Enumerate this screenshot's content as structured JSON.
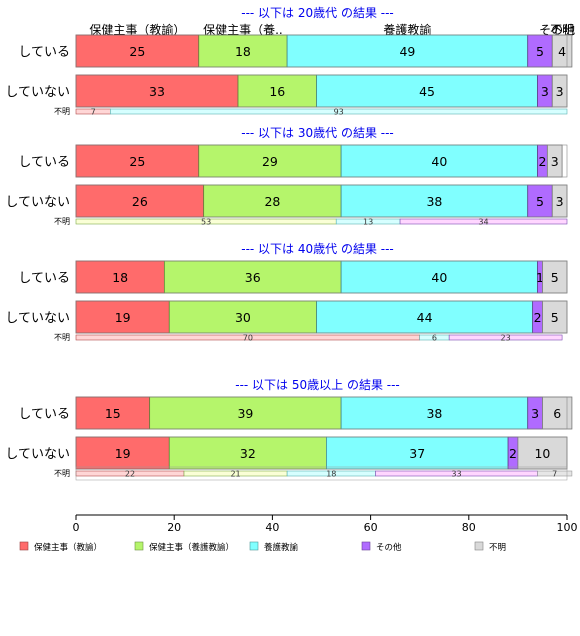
{
  "chart_data": {
    "type": "bar",
    "orientation": "horizontal",
    "stacked": "percent",
    "categories_header": [
      "保健主事（教諭）",
      "保健主事（養..",
      "養護教諭",
      "その他",
      "不明"
    ],
    "legend": {
      "placement": "bottom",
      "items": [
        {
          "label": "保健主事（教諭）",
          "color": "#FF6B6B"
        },
        {
          "label": "保健主事（養護教諭）",
          "color": "#B5F56B"
        },
        {
          "label": "養護教諭",
          "color": "#80FFFF"
        },
        {
          "label": "その他",
          "color": "#B06BFF"
        },
        {
          "label": "不明",
          "color": "#D9D9D9"
        }
      ]
    },
    "series_colors": [
      "#FF6B6B",
      "#B5F56B",
      "#80FFFF",
      "#B06BFF",
      "#D9D9D9"
    ],
    "light_colors": [
      "#FFD6D6",
      "#FAFFD6",
      "#D6FFFF",
      "#FFD6FF",
      "#E6E6E6"
    ],
    "xlim": [
      0,
      100
    ],
    "xticks": [
      0,
      20,
      40,
      60,
      80,
      100
    ],
    "groups": [
      {
        "title": "--- 以下は 20歳代 の結果 ---",
        "rows": [
          {
            "label": "している",
            "values": [
              25,
              18,
              49,
              5,
              4
            ]
          },
          {
            "label": "していない",
            "values": [
              33,
              16,
              45,
              3,
              3
            ]
          }
        ],
        "unknown": {
          "label": "不明",
          "values": [
            7,
            0,
            93,
            0,
            0
          ]
        }
      },
      {
        "title": "--- 以下は 30歳代 の結果 ---",
        "rows": [
          {
            "label": "している",
            "values": [
              25,
              29,
              40,
              2,
              3
            ]
          },
          {
            "label": "していない",
            "values": [
              26,
              28,
              38,
              5,
              3
            ]
          }
        ],
        "unknown": {
          "label": "不明",
          "values": [
            0,
            53,
            13,
            34,
            0
          ]
        }
      },
      {
        "title": "--- 以下は 40歳代 の結果 ---",
        "rows": [
          {
            "label": "している",
            "values": [
              18,
              36,
              40,
              1,
              5
            ]
          },
          {
            "label": "していない",
            "values": [
              19,
              30,
              44,
              2,
              5
            ]
          }
        ],
        "unknown": {
          "label": "不明",
          "values": [
            70,
            0,
            6,
            23,
            0
          ]
        }
      },
      {
        "title": "--- 以下は 50歳以上 の結果 ---",
        "rows": [
          {
            "label": "している",
            "values": [
              15,
              39,
              38,
              3,
              6
            ]
          },
          {
            "label": "していない",
            "values": [
              19,
              32,
              37,
              2,
              10
            ]
          }
        ],
        "unknown": {
          "label": "不明",
          "values": [
            22,
            21,
            18,
            33,
            7
          ]
        }
      }
    ]
  }
}
